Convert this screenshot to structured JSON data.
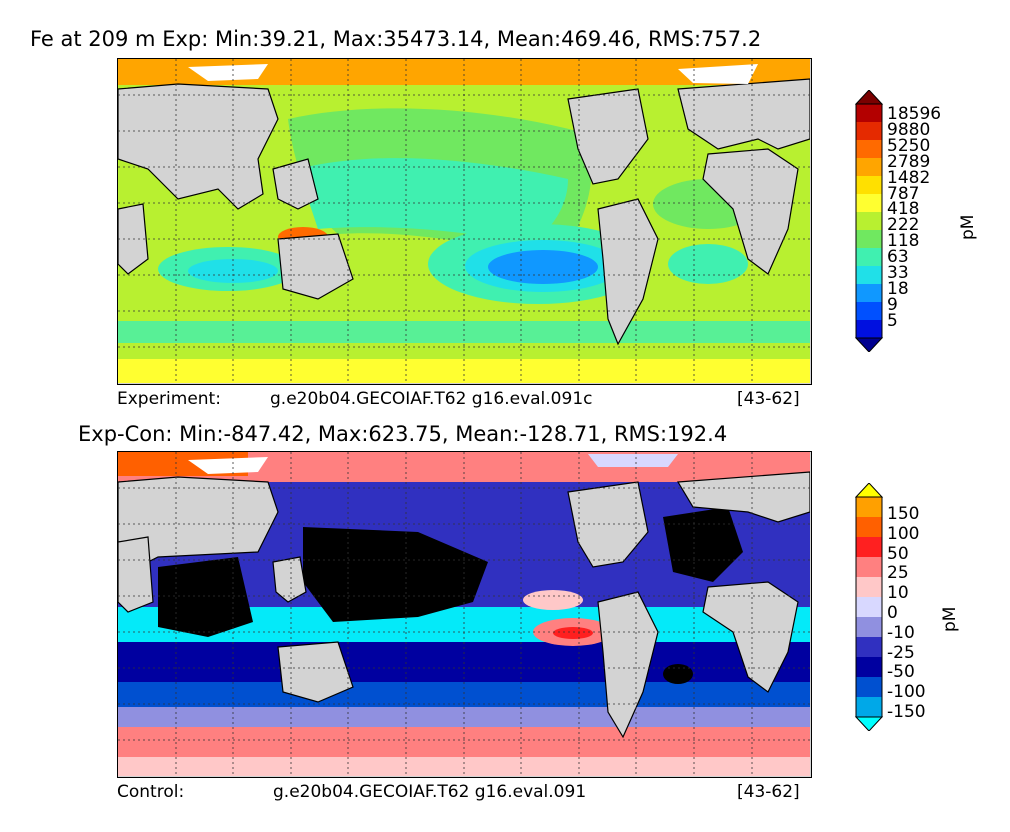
{
  "panels": {
    "top": {
      "title": "Fe at 209 m Exp: Min:39.21, Max:35473.14, Mean:469.46, RMS:757.2",
      "caption_left": "Experiment:",
      "caption_case": "g.e20b04.GECOIAF.T62 g16.eval.091c",
      "caption_range": "[43-62]",
      "colorbar": {
        "unit": "pM",
        "ticks": [
          "18596",
          "9880",
          "5250",
          "2789",
          "1482",
          "787",
          "418",
          "222",
          "118",
          "63",
          "33",
          "18",
          "9",
          "5"
        ],
        "colors": [
          "#7a0000",
          "#b30000",
          "#e52a00",
          "#ff6a00",
          "#ffa500",
          "#ffe000",
          "#ffff30",
          "#b8f030",
          "#70e860",
          "#40f0b0",
          "#20e0e8",
          "#1098ff",
          "#0050ff",
          "#0010e0",
          "#000090"
        ]
      }
    },
    "bottom": {
      "title": "Exp-Con: Min:-847.42, Max:623.75, Mean:-128.71, RMS:192.4",
      "caption_left": "Control:",
      "caption_case": "g.e20b04.GECOIAF.T62 g16.eval.091",
      "caption_range": "[43-62]",
      "colorbar": {
        "unit": "pM",
        "ticks": [
          "150",
          "100",
          "50",
          "25",
          "10",
          "0",
          "-10",
          "-25",
          "-50",
          "-100",
          "-150"
        ],
        "colors": [
          "#ffff00",
          "#ffa000",
          "#ff6000",
          "#ff2020",
          "#ff8080",
          "#ffc8c8",
          "#d8d8ff",
          "#9090e0",
          "#3030c0",
          "#0000a0",
          "#0050d0",
          "#00a8e8",
          "#00ffff"
        ]
      }
    }
  }
}
